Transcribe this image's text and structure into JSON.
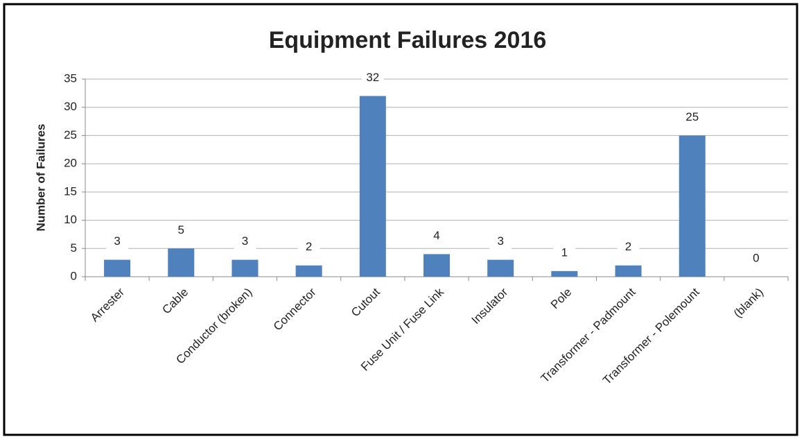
{
  "chart_data": {
    "type": "bar",
    "title": "Equipment Failures  2016",
    "y_label": "Number of Failures",
    "categories": [
      "Arrester",
      "Cable",
      "Conductor (broken)",
      "Connector",
      "Cutout",
      "Fuse Unit / Fuse Link",
      "Insulator",
      "Pole",
      "Transformer - Padmount",
      "Transformer - Polemount",
      "(blank)"
    ],
    "values": [
      3,
      5,
      3,
      2,
      32,
      4,
      3,
      1,
      2,
      25,
      0
    ],
    "color": "#4f81bd",
    "ylim": [
      0,
      35
    ],
    "yticks": [
      0,
      5,
      10,
      15,
      20,
      25,
      30,
      35
    ],
    "grid": true
  }
}
